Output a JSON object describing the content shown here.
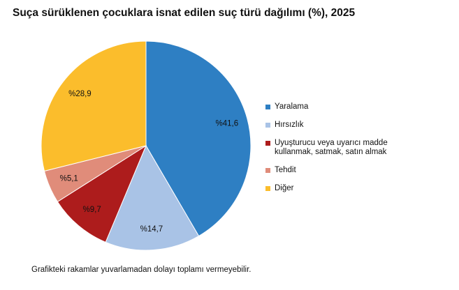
{
  "chart_data": {
    "type": "pie",
    "title": "Suça sürüklenen çocuklara isnat edilen suç türü dağılımı (%), 2025",
    "categories": [
      "Yaralama",
      "Hırsızlık",
      "Uyuşturucu veya uyarıcı madde kullanmak, satmak, satın almak",
      "Tehdit",
      "Diğer"
    ],
    "values": [
      41.6,
      14.7,
      9.7,
      5.1,
      28.9
    ],
    "value_labels": [
      "%41,6",
      "%14,7",
      "%9,7",
      "%5,1",
      "%28,9"
    ],
    "colors": [
      "#2e7fc3",
      "#a9c3e6",
      "#ad1c1c",
      "#e08c7a",
      "#fbbd2c"
    ],
    "legend": "right",
    "note": "Grafikteki rakamlar yuvarlamadan dolayı toplamı vermeyebilir."
  }
}
